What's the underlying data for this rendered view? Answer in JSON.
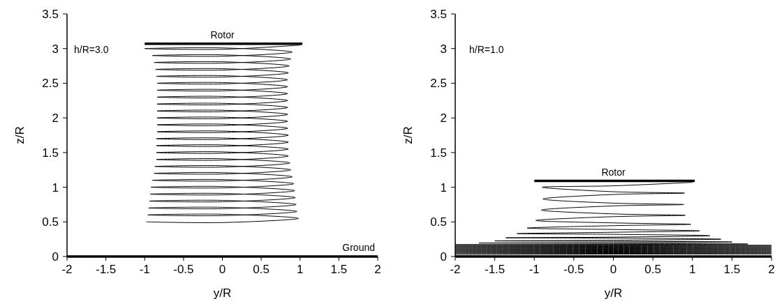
{
  "chart_data": [
    {
      "type": "line",
      "xlabel": "y/R",
      "ylabel": "z/R",
      "xlim": [
        -2,
        2
      ],
      "xticks": [
        -2,
        -1.5,
        -1,
        -0.5,
        0,
        0.5,
        1,
        1.5,
        2
      ],
      "ylim": [
        0,
        3.5
      ],
      "yticks": [
        0,
        0.5,
        1,
        1.5,
        2,
        2.5,
        3,
        3.5
      ],
      "series": [
        {
          "color": "#000000",
          "x": [
            1.0,
            0,
            -1.0,
            0,
            0.9,
            0,
            -0.9,
            0,
            0.88,
            0,
            -0.88,
            0,
            0.86,
            0,
            -0.86,
            0,
            0.85,
            0,
            -0.85,
            0,
            0.84,
            0,
            -0.84,
            0,
            0.84,
            0,
            -0.84,
            0,
            0.84,
            0,
            -0.84,
            0,
            0.84,
            0,
            -0.84,
            0,
            0.84,
            0,
            -0.84,
            0,
            0.84,
            0,
            -0.84,
            0,
            0.84,
            0,
            -0.84,
            0,
            0.84,
            0,
            -0.84,
            0,
            0.85,
            0,
            -0.85,
            0,
            0.85,
            0,
            -0.85,
            0,
            0.85,
            0,
            -0.85,
            0,
            0.85,
            0,
            -0.85,
            0,
            0.87,
            0,
            -0.87,
            0,
            0.88,
            0,
            -0.88,
            0,
            0.9,
            0,
            -0.9,
            0,
            0.92,
            0,
            -0.92,
            0,
            0.93,
            0,
            -0.93,
            0,
            0.94,
            0,
            -0.94,
            0,
            0.95,
            0,
            -0.95,
            0,
            0.96,
            0,
            -0.96,
            0,
            0.98,
            0,
            -0.98
          ],
          "values": [
            3.05,
            2.99,
            3.0,
            3.01,
            2.95,
            2.89,
            2.9,
            2.91,
            2.85,
            2.79,
            2.8,
            2.81,
            2.75,
            2.69,
            2.7,
            2.71,
            2.65,
            2.59,
            2.6,
            2.61,
            2.55,
            2.49,
            2.5,
            2.51,
            2.45,
            2.39,
            2.4,
            2.41,
            2.35,
            2.29,
            2.3,
            2.31,
            2.25,
            2.19,
            2.2,
            2.21,
            2.15,
            2.09,
            2.1,
            2.11,
            2.05,
            1.99,
            2.0,
            2.01,
            1.95,
            1.89,
            1.9,
            1.91,
            1.85,
            1.79,
            1.8,
            1.81,
            1.75,
            1.69,
            1.7,
            1.71,
            1.65,
            1.59,
            1.6,
            1.61,
            1.55,
            1.49,
            1.5,
            1.51,
            1.45,
            1.39,
            1.4,
            1.41,
            1.35,
            1.29,
            1.3,
            1.31,
            1.25,
            1.19,
            1.2,
            1.21,
            1.15,
            1.09,
            1.1,
            1.11,
            1.05,
            0.99,
            1.0,
            1.01,
            0.95,
            0.89,
            0.9,
            0.91,
            0.85,
            0.79,
            0.8,
            0.81,
            0.75,
            0.69,
            0.7,
            0.71,
            0.65,
            0.59,
            0.6,
            0.61,
            0.55,
            0.49,
            0.5
          ]
        },
        {
          "color": "#000000",
          "x": [
            -1,
            1.03
          ],
          "values": [
            3.07,
            3.07
          ]
        }
      ],
      "ref_lines": [
        {
          "axis": "y",
          "value": 0,
          "label": "Ground",
          "color": "#000000"
        }
      ],
      "annotations": [
        "h/R=3.0",
        {
          "text": "Rotor",
          "x": 0,
          "y": 3.07
        }
      ]
    },
    {
      "type": "line",
      "xlabel": "y/R",
      "ylabel": "z/R",
      "xlim": [
        -2,
        2
      ],
      "xticks": [
        -2,
        -1.5,
        -1,
        -0.5,
        0,
        0.5,
        1,
        1.5,
        2
      ],
      "ylim": [
        0,
        3.5
      ],
      "yticks": [
        0,
        0.5,
        1,
        1.5,
        2,
        2.5,
        3,
        3.5
      ],
      "series": [
        {
          "color": "#000000",
          "x": [
            1.0,
            0,
            -0.9,
            0,
            0.9,
            0,
            -0.89,
            0,
            0.89,
            0,
            -0.91,
            0,
            0.91,
            0,
            -0.98,
            0,
            0.98,
            0,
            -1.09,
            0,
            1.09,
            0,
            -1.22,
            0,
            1.22,
            0,
            -1.36,
            0,
            1.36,
            0,
            -1.5,
            0,
            1.5,
            0,
            -1.7,
            0,
            1.7,
            0,
            -2,
            0,
            2,
            0,
            -2,
            0,
            2,
            0,
            -2,
            0,
            2,
            0,
            -2,
            0,
            2,
            0,
            -2,
            0,
            2,
            0,
            -2,
            0,
            2,
            0,
            -2,
            0,
            2,
            0,
            -2
          ],
          "values": [
            1.07,
            1.02,
            1.0,
            0.935,
            0.915,
            0.895,
            0.83,
            0.77,
            0.75,
            0.73,
            0.67,
            0.615,
            0.595,
            0.575,
            0.52,
            0.485,
            0.465,
            0.445,
            0.41,
            0.39,
            0.37,
            0.35,
            0.33,
            0.32,
            0.3,
            0.28,
            0.27,
            0.265,
            0.25,
            0.235,
            0.225,
            0.22,
            0.21,
            0.2,
            0.195,
            0.19,
            0.18,
            0.175,
            0.17,
            0.165,
            0.16,
            0.155,
            0.15,
            0.145,
            0.14,
            0.135,
            0.13,
            0.125,
            0.12,
            0.115,
            0.11,
            0.105,
            0.1,
            0.095,
            0.09,
            0.085,
            0.08,
            0.075,
            0.07,
            0.065,
            0.06,
            0.055,
            0.05,
            0.045,
            0.04,
            0.035,
            0.03
          ]
        },
        {
          "color": "#000000",
          "x": [
            -1,
            1.03
          ],
          "values": [
            1.09,
            1.09
          ]
        }
      ],
      "ref_lines": [
        {
          "axis": "y",
          "value": 0,
          "color": "#000000"
        }
      ],
      "annotations": [
        "h/R=1.0",
        {
          "text": "Rotor",
          "x": 0,
          "y": 1.09
        }
      ]
    }
  ]
}
